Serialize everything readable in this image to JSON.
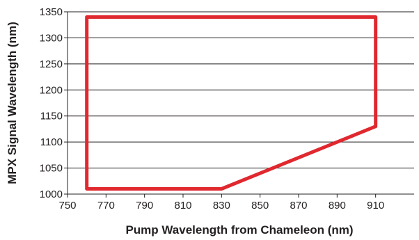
{
  "chart_data": {
    "type": "line",
    "title": "",
    "xlabel": "Pump Wavelength from Chameleon (nm)",
    "ylabel": "MPX Signal Wavelength (nm)",
    "xlim": [
      750,
      930
    ],
    "ylim": [
      1000,
      1350
    ],
    "xticks": [
      750,
      770,
      790,
      810,
      830,
      850,
      870,
      890,
      910
    ],
    "yticks": [
      1000,
      1050,
      1100,
      1150,
      1200,
      1250,
      1300,
      1350
    ],
    "grid": "horizontal",
    "series": [
      {
        "color": "#e0282f",
        "x": [
          760,
          910,
          910,
          830,
          760,
          760
        ],
        "y": [
          1340,
          1340,
          1130,
          1010,
          1010,
          1340
        ]
      }
    ]
  }
}
